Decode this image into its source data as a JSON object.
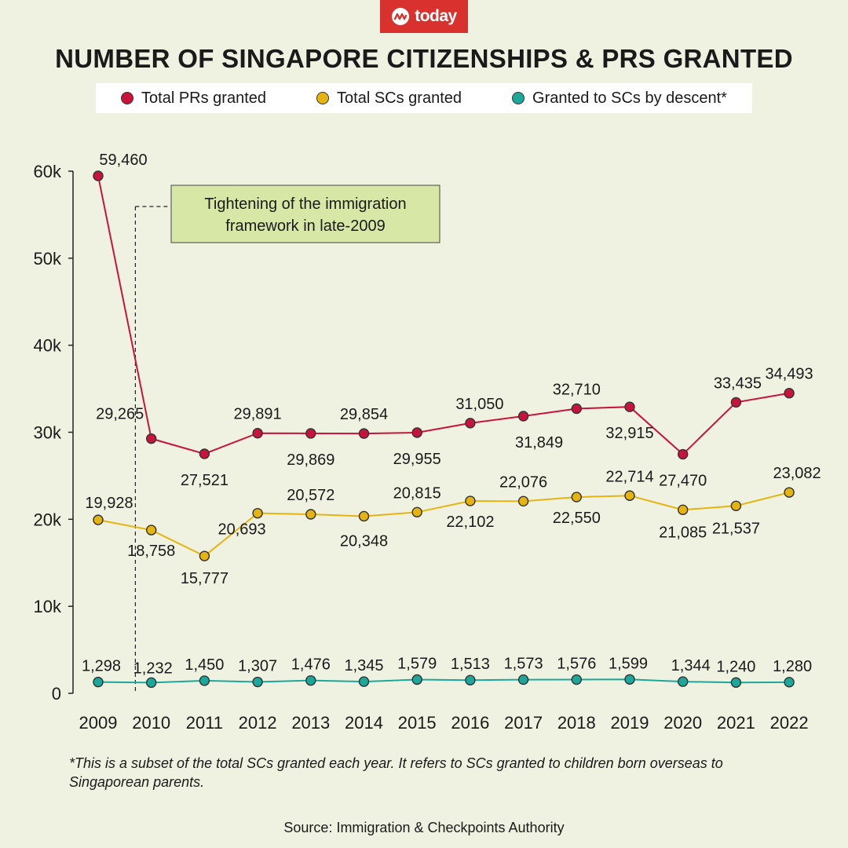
{
  "brand": {
    "name": "today",
    "color": "#d9322e"
  },
  "title": "NUMBER OF SINGAPORE CITIZENSHIPS & PRS GRANTED",
  "footnote": "*This is a subset of the total SCs granted each year. It refers to SCs granted to children born overseas to Singaporean parents.",
  "source": "Source: Immigration & Checkpoints Authority",
  "chart_data": {
    "type": "line",
    "title": "NUMBER OF SINGAPORE CITIZENSHIPS & PRS GRANTED",
    "xlabel": "",
    "ylabel": "",
    "x": [
      "2009",
      "2010",
      "2011",
      "2012",
      "2013",
      "2014",
      "2015",
      "2016",
      "2017",
      "2018",
      "2019",
      "2020",
      "2021",
      "2022"
    ],
    "ylim": [
      0,
      60000
    ],
    "yticks": [
      0,
      10000,
      20000,
      30000,
      40000,
      50000,
      60000
    ],
    "ytick_labels": [
      "0",
      "10k",
      "20k",
      "30k",
      "40k",
      "50k",
      "60k"
    ],
    "grid": false,
    "legend_position": "top",
    "series": [
      {
        "name": "Total PRs granted",
        "color": "#c8143c",
        "values": [
          59460,
          29265,
          27521,
          29891,
          29869,
          29854,
          29955,
          31050,
          31849,
          32710,
          32915,
          27470,
          33435,
          34493
        ],
        "labels": [
          "59,460",
          "29,265",
          "27,521",
          "29,891",
          "29,869",
          "29,854",
          "29,955",
          "31,050",
          "31,849",
          "32,710",
          "32,915",
          "27,470",
          "33,435",
          "34,493"
        ]
      },
      {
        "name": "Total SCs granted",
        "color": "#e5b411",
        "values": [
          19928,
          18758,
          15777,
          20693,
          20572,
          20348,
          20815,
          22102,
          22076,
          22550,
          22714,
          21085,
          21537,
          23082
        ],
        "labels": [
          "19,928",
          "18,758",
          "15,777",
          "20,693",
          "20,572",
          "20,348",
          "20,815",
          "22,102",
          "22,076",
          "22,550",
          "22,714",
          "21,085",
          "21,537",
          "23,082"
        ]
      },
      {
        "name": "Granted to SCs by descent*",
        "color": "#1ba89a",
        "values": [
          1298,
          1232,
          1450,
          1307,
          1476,
          1345,
          1579,
          1513,
          1573,
          1576,
          1599,
          1344,
          1240,
          1280
        ],
        "labels": [
          "1,298",
          "1,232",
          "1,450",
          "1,307",
          "1,476",
          "1,345",
          "1,579",
          "1,513",
          "1,573",
          "1,576",
          "1,599",
          "1,344",
          "1,240",
          "1,280"
        ]
      }
    ],
    "annotations": [
      {
        "text_lines": [
          "Tightening of the immigration",
          "framework in late-2009"
        ],
        "x_value": 2009.7,
        "box_color": "#d7e8a6"
      }
    ]
  }
}
